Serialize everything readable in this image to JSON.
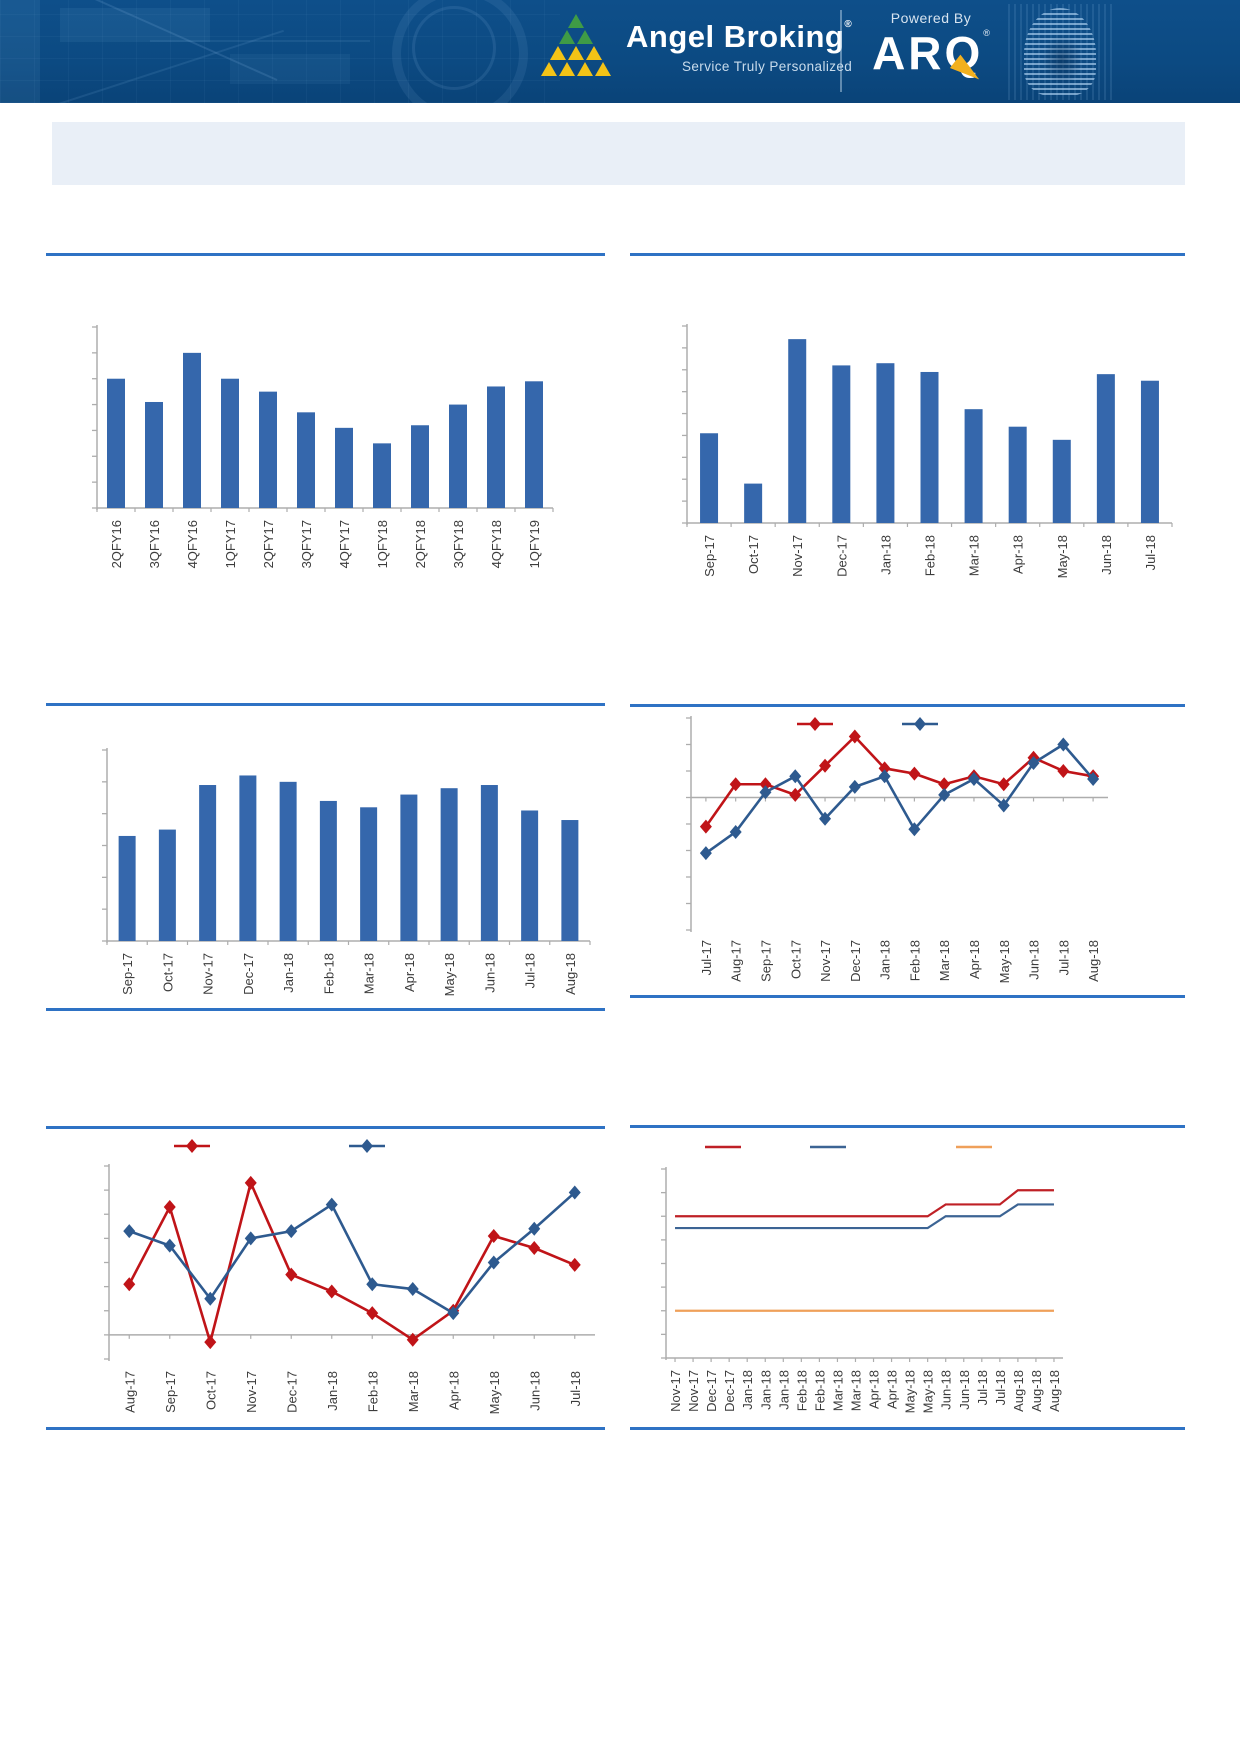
{
  "header": {
    "brand": "Angel Broking",
    "brand_mark": "®",
    "tagline": "Service Truly Personalized",
    "powered_by": "Powered By",
    "product_name": "ARQ",
    "product_mark": "®"
  },
  "colors": {
    "header_bg": "#0c4a82",
    "separator_blue": "#2e72c4",
    "bar_fill": "#3567ac",
    "axis_gray": "#adadad",
    "label_text": "#3c3c3c",
    "red_series": "#c01418",
    "blue_series": "#2e5a8f",
    "orange_series": "#efa05a",
    "title_box_bg": "#e9eff7",
    "arq_gold": "#f2b01e",
    "logo_green": "#3f9b46",
    "logo_yellow": "#f3c317"
  },
  "chart_data": [
    {
      "id": "quarterly-bar",
      "type": "bar",
      "categories": [
        "2QFY16",
        "3QFY16",
        "4QFY16",
        "1QFY17",
        "2QFY17",
        "3QFY17",
        "4QFY17",
        "1QFY18",
        "2QFY18",
        "3QFY18",
        "4QFY18",
        "1QFY19"
      ],
      "values": [
        5.0,
        4.1,
        6.0,
        5.0,
        4.5,
        3.7,
        3.1,
        2.5,
        3.2,
        4.0,
        4.7,
        4.9
      ],
      "ylim": [
        0,
        7
      ],
      "bar_color": "#3567ac",
      "grid": false,
      "note": "values estimated from pixels; y-axis tick labels not visible in source"
    },
    {
      "id": "monthly-bar-1",
      "type": "bar",
      "categories": [
        "Sep-17",
        "Oct-17",
        "Nov-17",
        "Dec-17",
        "Jan-18",
        "Feb-18",
        "Mar-18",
        "Apr-18",
        "May-18",
        "Jun-18",
        "Jul-18"
      ],
      "values": [
        4.1,
        1.8,
        8.4,
        7.2,
        7.3,
        6.9,
        5.2,
        4.4,
        3.8,
        6.8,
        6.5
      ],
      "ylim": [
        0,
        9
      ],
      "bar_color": "#3567ac",
      "grid": false,
      "note": "values estimated from pixels; y-axis tick labels not visible in source"
    },
    {
      "id": "monthly-bar-2",
      "type": "bar",
      "categories": [
        "Sep-17",
        "Oct-17",
        "Nov-17",
        "Dec-17",
        "Jan-18",
        "Feb-18",
        "Mar-18",
        "Apr-18",
        "May-18",
        "Jun-18",
        "Jul-18",
        "Aug-18"
      ],
      "values": [
        3.3,
        3.5,
        4.9,
        5.2,
        5.0,
        4.4,
        4.2,
        4.6,
        4.8,
        4.9,
        4.1,
        3.8
      ],
      "ylim": [
        0,
        6
      ],
      "bar_color": "#3567ac",
      "grid": false,
      "note": "values estimated from pixels; y-axis tick labels not visible in source"
    },
    {
      "id": "line-two-series-a",
      "type": "line",
      "categories": [
        "Jul-17",
        "Aug-17",
        "Sep-17",
        "Oct-17",
        "Nov-17",
        "Dec-17",
        "Jan-18",
        "Feb-18",
        "Mar-18",
        "Apr-18",
        "May-18",
        "Jun-18",
        "Jul-18",
        "Aug-18"
      ],
      "series": [
        {
          "name": "red-series",
          "color": "#c01418",
          "marker": "diamond",
          "values": [
            -1.1,
            0.5,
            0.5,
            0.1,
            1.2,
            2.3,
            1.1,
            0.9,
            0.5,
            0.8,
            0.5,
            1.5,
            1.0,
            0.8
          ]
        },
        {
          "name": "blue-series",
          "color": "#2e5a8f",
          "marker": "diamond",
          "values": [
            -2.1,
            -1.3,
            0.2,
            0.8,
            -0.8,
            0.4,
            0.8,
            -1.2,
            0.1,
            0.7,
            -0.3,
            1.3,
            2.0,
            0.7
          ]
        }
      ],
      "ylim": [
        -5,
        3
      ],
      "legend_position": "top",
      "note": "legend labels and y-axis tick labels not visible in source; values estimated from pixels"
    },
    {
      "id": "line-two-series-b",
      "type": "line",
      "categories": [
        "Aug-17",
        "Sep-17",
        "Oct-17",
        "Nov-17",
        "Dec-17",
        "Jan-18",
        "Feb-18",
        "Mar-18",
        "Apr-18",
        "May-18",
        "Jun-18",
        "Jul-18"
      ],
      "series": [
        {
          "name": "red-series",
          "color": "#c01418",
          "marker": "diamond",
          "values": [
            2.1,
            5.3,
            -0.3,
            6.3,
            2.5,
            1.8,
            0.9,
            -0.2,
            1.0,
            4.1,
            3.6,
            2.9
          ]
        },
        {
          "name": "blue-series",
          "color": "#2e5a8f",
          "marker": "diamond",
          "values": [
            4.3,
            3.7,
            1.5,
            4.0,
            4.3,
            5.4,
            2.1,
            1.9,
            0.9,
            3.0,
            4.4,
            5.9
          ]
        }
      ],
      "ylim": [
        -1,
        7
      ],
      "legend_position": "top",
      "note": "legend labels and y-axis tick labels not visible in source; values estimated from pixels"
    },
    {
      "id": "line-three-series",
      "type": "line",
      "categories": [
        "Nov-17",
        "Nov-17",
        "Dec-17",
        "Dec-17",
        "Jan-18",
        "Jan-18",
        "Jan-18",
        "Feb-18",
        "Feb-18",
        "Mar-18",
        "Mar-18",
        "Apr-18",
        "Apr-18",
        "May-18",
        "May-18",
        "Jun-18",
        "Jun-18",
        "Jul-18",
        "Jul-18",
        "Aug-18",
        "Aug-18",
        "Aug-18"
      ],
      "series": [
        {
          "name": "red-series",
          "color": "#bf2026",
          "marker": "none",
          "values": [
            6,
            6,
            6,
            6,
            6,
            6,
            6,
            6,
            6,
            6,
            6,
            6,
            6,
            6,
            6,
            6.5,
            6.5,
            6.5,
            6.5,
            7.1,
            7.1,
            7.1
          ]
        },
        {
          "name": "blue-series",
          "color": "#3c6494",
          "marker": "none",
          "values": [
            5.5,
            5.5,
            5.5,
            5.5,
            5.5,
            5.5,
            5.5,
            5.5,
            5.5,
            5.5,
            5.5,
            5.5,
            5.5,
            5.5,
            5.5,
            6,
            6,
            6,
            6,
            6.5,
            6.5,
            6.5
          ]
        },
        {
          "name": "orange-series",
          "color": "#efa05a",
          "marker": "none",
          "values": [
            2,
            2,
            2,
            2,
            2,
            2,
            2,
            2,
            2,
            2,
            2,
            2,
            2,
            2,
            2,
            2,
            2,
            2,
            2,
            2,
            2,
            2
          ]
        }
      ],
      "ylim": [
        0,
        8
      ],
      "legend_position": "top",
      "note": "legend labels and y-axis tick labels not visible in source; values estimated from pixels"
    }
  ]
}
